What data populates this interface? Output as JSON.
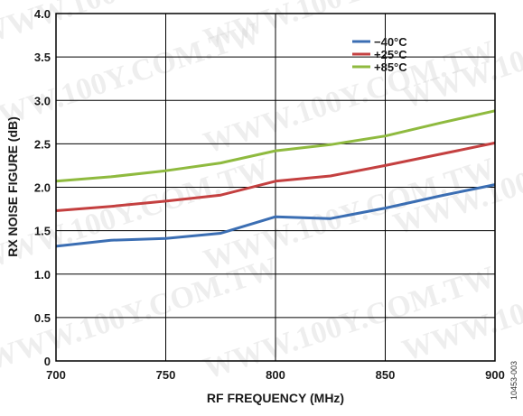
{
  "watermark": "WWW.100Y.COM.TW",
  "figure_id": "10453-003",
  "chart_data": {
    "type": "line",
    "title": "",
    "xlabel": "RF FREQUENCY (MHz)",
    "ylabel": "RX NOISE FIGURE (dB)",
    "xlim": [
      700,
      900
    ],
    "ylim": [
      0,
      4.0
    ],
    "x_ticks": [
      "700",
      "750",
      "800",
      "850",
      "900"
    ],
    "y_ticks": [
      "0",
      "0.5",
      "1.0",
      "1.5",
      "2.0",
      "2.5",
      "3.0",
      "3.5",
      "4.0"
    ],
    "grid": true,
    "legend_position": "top-right",
    "x": [
      700,
      725,
      750,
      775,
      800,
      825,
      850,
      875,
      900
    ],
    "series": [
      {
        "name": "−40°C",
        "color": "#3b6eb3",
        "values": [
          1.32,
          1.39,
          1.41,
          1.47,
          1.66,
          1.64,
          1.76,
          1.9,
          2.03
        ]
      },
      {
        "name": "+25°C",
        "color": "#c44040",
        "values": [
          1.73,
          1.78,
          1.84,
          1.91,
          2.07,
          2.13,
          2.25,
          2.38,
          2.51
        ]
      },
      {
        "name": "+85°C",
        "color": "#8fba3f",
        "values": [
          2.07,
          2.12,
          2.19,
          2.28,
          2.42,
          2.49,
          2.59,
          2.74,
          2.88
        ]
      }
    ]
  }
}
